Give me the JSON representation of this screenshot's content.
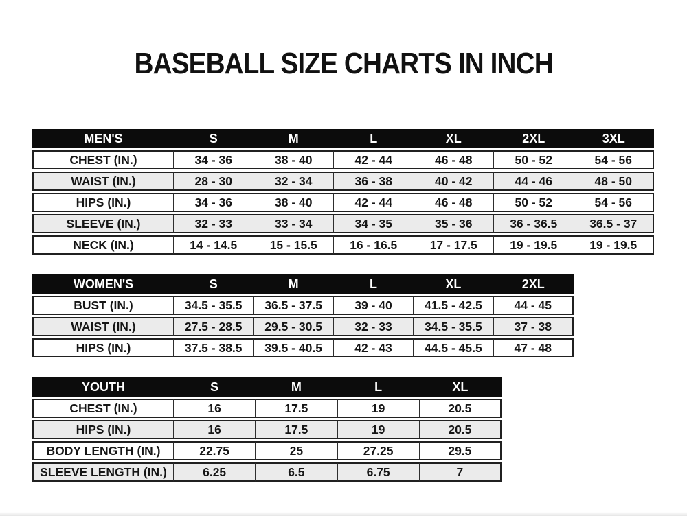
{
  "page": {
    "title": "BASEBALL SIZE CHARTS IN INCH"
  },
  "colors": {
    "header_bg": "#0c0c0c",
    "header_text": "#ffffff",
    "row_bg": "#ffffff",
    "row_alt_bg": "#ebebeb",
    "border": "#202020",
    "page_bg": "#ffffff"
  },
  "chart_data": [
    {
      "type": "table",
      "name": "mens",
      "title": "MEN'S",
      "columns": [
        "MEN'S",
        "S",
        "M",
        "L",
        "XL",
        "2XL",
        "3XL"
      ],
      "rows": [
        [
          "CHEST (IN.)",
          "34 - 36",
          "38 - 40",
          "42 - 44",
          "46 - 48",
          "50 - 52",
          "54 - 56"
        ],
        [
          "WAIST (IN.)",
          "28 - 30",
          "32 - 34",
          "36 - 38",
          "40 - 42",
          "44 - 46",
          "48 - 50"
        ],
        [
          "HIPS (IN.)",
          "34 - 36",
          "38 - 40",
          "42 - 44",
          "46 - 48",
          "50 - 52",
          "54 - 56"
        ],
        [
          "SLEEVE (IN.)",
          "32 - 33",
          "33 - 34",
          "34 - 35",
          "35 - 36",
          "36 - 36.5",
          "36.5 - 37"
        ],
        [
          "NECK (IN.)",
          "14 - 14.5",
          "15 - 15.5",
          "16 - 16.5",
          "17 - 17.5",
          "19 - 19.5",
          "19 - 19.5"
        ]
      ]
    },
    {
      "type": "table",
      "name": "womens",
      "title": "WOMEN'S",
      "columns": [
        "WOMEN'S",
        "S",
        "M",
        "L",
        "XL",
        "2XL"
      ],
      "rows": [
        [
          "BUST (IN.)",
          "34.5 - 35.5",
          "36.5 - 37.5",
          "39 - 40",
          "41.5 - 42.5",
          "44 - 45"
        ],
        [
          "WAIST (IN.)",
          "27.5 - 28.5",
          "29.5 - 30.5",
          "32 - 33",
          "34.5 - 35.5",
          "37 - 38"
        ],
        [
          "HIPS (IN.)",
          "37.5 - 38.5",
          "39.5 - 40.5",
          "42 - 43",
          "44.5 - 45.5",
          "47 - 48"
        ]
      ]
    },
    {
      "type": "table",
      "name": "youth",
      "title": "YOUTH",
      "columns": [
        "YOUTH",
        "S",
        "M",
        "L",
        "XL"
      ],
      "rows": [
        [
          "CHEST (IN.)",
          "16",
          "17.5",
          "19",
          "20.5"
        ],
        [
          "HIPS (IN.)",
          "16",
          "17.5",
          "19",
          "20.5"
        ],
        [
          "BODY LENGTH (IN.)",
          "22.75",
          "25",
          "27.25",
          "29.5"
        ],
        [
          "SLEEVE LENGTH (IN.)",
          "6.25",
          "6.5",
          "6.75",
          "7"
        ]
      ]
    }
  ]
}
